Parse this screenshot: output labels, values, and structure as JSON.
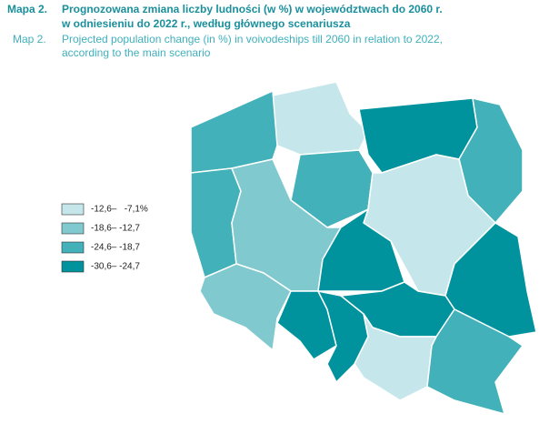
{
  "header": {
    "label_pl": "Mapa 2.",
    "title_pl": [
      "Prognozowana zmiana liczby ludności (w %) w województwach do 2060 r.",
      "w odniesieniu do 2022 r., według głównego scenariusza"
    ],
    "label_en": "Map 2.",
    "title_en": [
      "Projected population change (in %) in voivodeships till 2060 in relation to 2022,",
      "according to the main scenario"
    ]
  },
  "legend": [
    {
      "label": "-12,6–   -7,1%",
      "color": "#c5e6ea"
    },
    {
      "label": "-18,6– -12,7",
      "color": "#80c9cf"
    },
    {
      "label": "-24,6– -18,7",
      "color": "#42b1b9"
    },
    {
      "label": "-30,6– -24,7",
      "color": "#00939e"
    }
  ]
}
